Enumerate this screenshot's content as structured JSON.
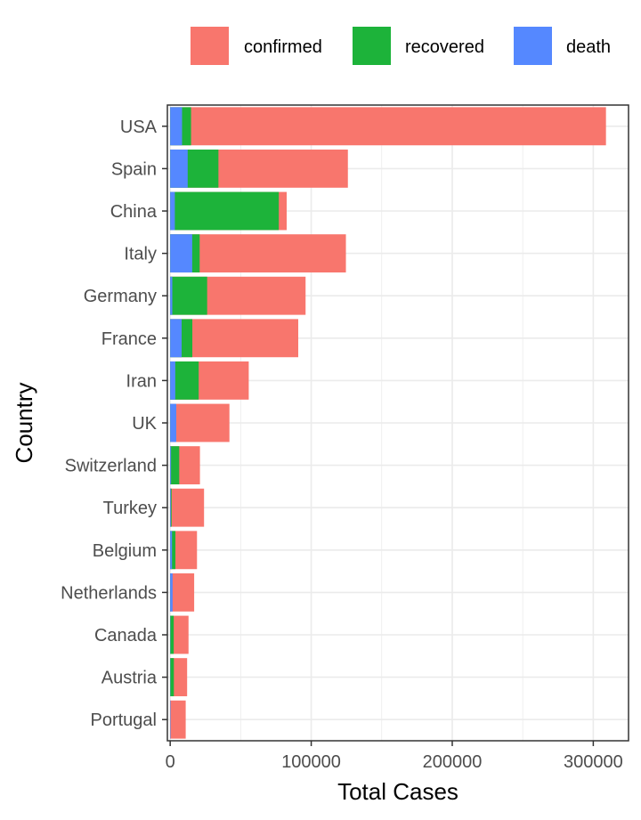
{
  "chart_data": {
    "type": "bar",
    "orientation": "horizontal",
    "stacking": "overlaid",
    "xlabel": "Total Cases",
    "ylabel": "Country",
    "xlim": [
      -2000,
      325000
    ],
    "xticks": [
      0,
      100000,
      200000,
      300000
    ],
    "grid": true,
    "legend_position": "top",
    "categories": [
      "USA",
      "Spain",
      "China",
      "Italy",
      "Germany",
      "France",
      "Iran",
      "UK",
      "Switzerland",
      "Turkey",
      "Belgium",
      "Netherlands",
      "Canada",
      "Austria",
      "Portugal"
    ],
    "series": [
      {
        "name": "confirmed",
        "color": "#F8766D",
        "values": [
          309000,
          126000,
          82600,
          124600,
          96000,
          90800,
          55700,
          42000,
          21100,
          24000,
          19000,
          17000,
          13000,
          12000,
          11000
        ]
      },
      {
        "name": "recovered",
        "color": "#1DB33A",
        "values": [
          14800,
          34200,
          77000,
          20900,
          26200,
          15700,
          20200,
          200,
          6400,
          1000,
          3700,
          300,
          2500,
          2600,
          100
        ]
      },
      {
        "name": "death",
        "color": "#5588FF",
        "values": [
          8400,
          12400,
          3300,
          15600,
          1500,
          8100,
          3600,
          4300,
          600,
          500,
          1300,
          1700,
          200,
          200,
          300
        ]
      }
    ]
  }
}
